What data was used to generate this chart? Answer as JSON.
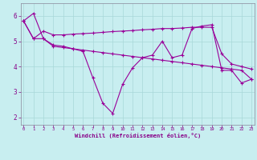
{
  "bg_color": "#c8eef0",
  "line_color": "#990099",
  "grid_color": "#a8d8d8",
  "xlabel": "Windchill (Refroidissement éolien,°C)",
  "xlim": [
    -0.3,
    23.3
  ],
  "ylim": [
    1.7,
    6.5
  ],
  "yticks": [
    2,
    3,
    4,
    5,
    6
  ],
  "xticks": [
    0,
    1,
    2,
    3,
    4,
    5,
    6,
    7,
    8,
    9,
    10,
    11,
    12,
    13,
    14,
    15,
    16,
    17,
    18,
    19,
    20,
    21,
    22,
    23
  ],
  "line1_y": [
    5.8,
    6.1,
    5.1,
    4.85,
    4.8,
    4.7,
    4.6,
    3.55,
    2.55,
    2.15,
    3.3,
    3.95,
    4.35,
    4.45,
    5.0,
    4.35,
    4.45,
    5.5,
    5.6,
    5.65,
    3.85,
    3.85,
    3.35,
    3.5
  ],
  "line2_y": [
    5.8,
    5.1,
    5.4,
    5.25,
    5.25,
    5.28,
    5.3,
    5.32,
    5.35,
    5.38,
    5.4,
    5.42,
    5.45,
    5.47,
    5.5,
    5.5,
    5.52,
    5.55,
    5.55,
    5.55,
    4.5,
    4.1,
    4.0,
    3.9
  ],
  "line3_y": [
    5.8,
    5.1,
    5.1,
    4.8,
    4.75,
    4.7,
    4.65,
    4.6,
    4.55,
    4.5,
    4.45,
    4.4,
    4.35,
    4.3,
    4.25,
    4.2,
    4.15,
    4.1,
    4.05,
    4.0,
    3.95,
    3.9,
    3.85,
    3.5
  ]
}
